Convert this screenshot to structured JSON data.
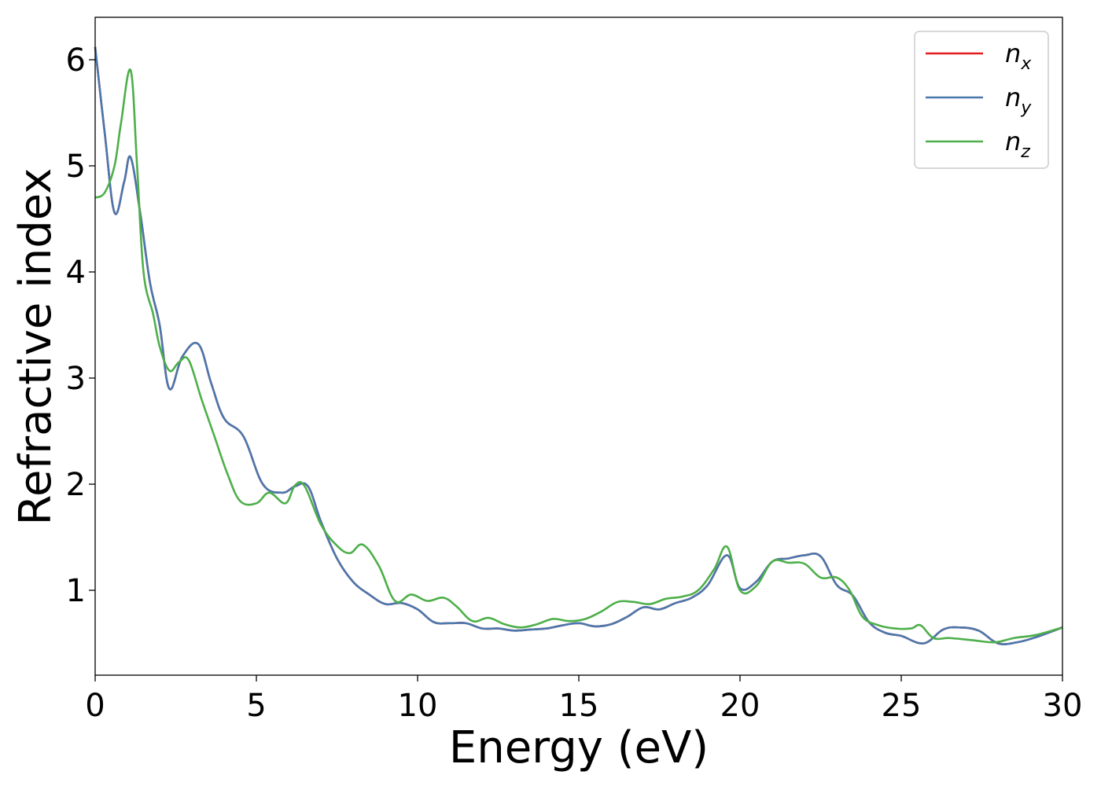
{
  "chart_data": {
    "type": "line",
    "title": "",
    "xlabel": "Energy (eV)",
    "ylabel": "Refractive index",
    "xlim": [
      0,
      30
    ],
    "ylim": [
      0.2,
      6.4
    ],
    "xticks": [
      0,
      5,
      10,
      15,
      20,
      25,
      30
    ],
    "yticks": [
      1,
      2,
      3,
      4,
      5,
      6
    ],
    "grid": false,
    "legend_position": "top-right",
    "series": [
      {
        "name": "n_x",
        "label_main": "n",
        "label_sub": "x",
        "color": "#e41a1c",
        "x": [
          0,
          0.3,
          0.6,
          0.9,
          1.1,
          1.4,
          1.7,
          2.0,
          2.3,
          2.7,
          3.2,
          3.6,
          4.0,
          4.6,
          5.2,
          5.8,
          6.2,
          6.6,
          7.0,
          7.5,
          8.0,
          8.5,
          9.0,
          9.5,
          10.0,
          10.5,
          11.0,
          11.5,
          12.0,
          12.5,
          13.0,
          13.5,
          14.0,
          14.5,
          15.0,
          15.5,
          16.0,
          16.5,
          17.0,
          17.5,
          18.0,
          18.5,
          19.0,
          19.6,
          20.0,
          20.5,
          21.0,
          21.5,
          22.0,
          22.5,
          23.0,
          23.5,
          24.0,
          24.5,
          25.0,
          25.7,
          26.3,
          26.8,
          27.4,
          28.0,
          28.6,
          29.2,
          30.0
        ],
        "values": [
          6.12,
          5.3,
          4.56,
          4.85,
          5.08,
          4.55,
          3.9,
          3.5,
          2.9,
          3.2,
          3.32,
          2.95,
          2.62,
          2.45,
          2.0,
          1.92,
          1.98,
          1.98,
          1.65,
          1.3,
          1.08,
          0.96,
          0.87,
          0.88,
          0.82,
          0.7,
          0.69,
          0.69,
          0.64,
          0.64,
          0.62,
          0.63,
          0.64,
          0.67,
          0.69,
          0.66,
          0.68,
          0.75,
          0.84,
          0.82,
          0.88,
          0.93,
          1.05,
          1.33,
          1.02,
          1.08,
          1.27,
          1.3,
          1.33,
          1.32,
          1.05,
          0.95,
          0.7,
          0.6,
          0.57,
          0.5,
          0.63,
          0.65,
          0.62,
          0.5,
          0.51,
          0.56,
          0.65
        ]
      },
      {
        "name": "n_y",
        "label_main": "n",
        "label_sub": "y",
        "color": "#4a78ad",
        "x": [
          0,
          0.3,
          0.6,
          0.9,
          1.1,
          1.4,
          1.7,
          2.0,
          2.3,
          2.7,
          3.2,
          3.6,
          4.0,
          4.6,
          5.2,
          5.8,
          6.2,
          6.6,
          7.0,
          7.5,
          8.0,
          8.5,
          9.0,
          9.5,
          10.0,
          10.5,
          11.0,
          11.5,
          12.0,
          12.5,
          13.0,
          13.5,
          14.0,
          14.5,
          15.0,
          15.5,
          16.0,
          16.5,
          17.0,
          17.5,
          18.0,
          18.5,
          19.0,
          19.6,
          20.0,
          20.5,
          21.0,
          21.5,
          22.0,
          22.5,
          23.0,
          23.5,
          24.0,
          24.5,
          25.0,
          25.7,
          26.3,
          26.8,
          27.4,
          28.0,
          28.6,
          29.2,
          30.0
        ],
        "values": [
          6.12,
          5.3,
          4.56,
          4.85,
          5.08,
          4.55,
          3.9,
          3.5,
          2.9,
          3.2,
          3.32,
          2.95,
          2.62,
          2.45,
          2.0,
          1.92,
          1.98,
          1.98,
          1.65,
          1.3,
          1.08,
          0.96,
          0.87,
          0.88,
          0.82,
          0.7,
          0.69,
          0.69,
          0.64,
          0.64,
          0.62,
          0.63,
          0.64,
          0.67,
          0.69,
          0.66,
          0.68,
          0.75,
          0.84,
          0.82,
          0.88,
          0.93,
          1.05,
          1.33,
          1.02,
          1.08,
          1.27,
          1.3,
          1.33,
          1.32,
          1.05,
          0.95,
          0.7,
          0.6,
          0.57,
          0.5,
          0.63,
          0.65,
          0.62,
          0.5,
          0.51,
          0.56,
          0.65
        ]
      },
      {
        "name": "n_z",
        "label_main": "n",
        "label_sub": "z",
        "color": "#4daf4a",
        "x": [
          0,
          0.3,
          0.6,
          0.8,
          1.1,
          1.3,
          1.5,
          1.8,
          2.0,
          2.3,
          2.6,
          2.9,
          3.3,
          3.7,
          4.1,
          4.5,
          5.0,
          5.4,
          5.9,
          6.2,
          6.5,
          7.0,
          7.5,
          7.9,
          8.3,
          8.8,
          9.3,
          9.8,
          10.3,
          10.8,
          11.2,
          11.7,
          12.2,
          12.7,
          13.2,
          13.7,
          14.2,
          14.7,
          15.2,
          15.7,
          16.2,
          16.7,
          17.2,
          17.7,
          18.2,
          18.7,
          19.2,
          19.6,
          20.0,
          20.5,
          21.0,
          21.5,
          22.0,
          22.5,
          23.0,
          23.4,
          23.8,
          24.3,
          24.8,
          25.3,
          25.6,
          26.0,
          26.5,
          27.2,
          27.9,
          28.5,
          29.2,
          30.0
        ],
        "values": [
          4.7,
          4.75,
          5.0,
          5.4,
          5.9,
          5.0,
          4.0,
          3.6,
          3.3,
          3.07,
          3.15,
          3.17,
          2.8,
          2.45,
          2.1,
          1.84,
          1.82,
          1.92,
          1.82,
          1.99,
          1.98,
          1.62,
          1.42,
          1.35,
          1.43,
          1.23,
          0.9,
          0.96,
          0.9,
          0.93,
          0.85,
          0.71,
          0.74,
          0.68,
          0.65,
          0.68,
          0.73,
          0.71,
          0.73,
          0.8,
          0.89,
          0.89,
          0.87,
          0.92,
          0.94,
          1.0,
          1.2,
          1.41,
          1.0,
          1.04,
          1.27,
          1.26,
          1.25,
          1.12,
          1.12,
          1.0,
          0.75,
          0.67,
          0.64,
          0.64,
          0.67,
          0.55,
          0.55,
          0.53,
          0.51,
          0.55,
          0.58,
          0.65
        ]
      }
    ]
  }
}
